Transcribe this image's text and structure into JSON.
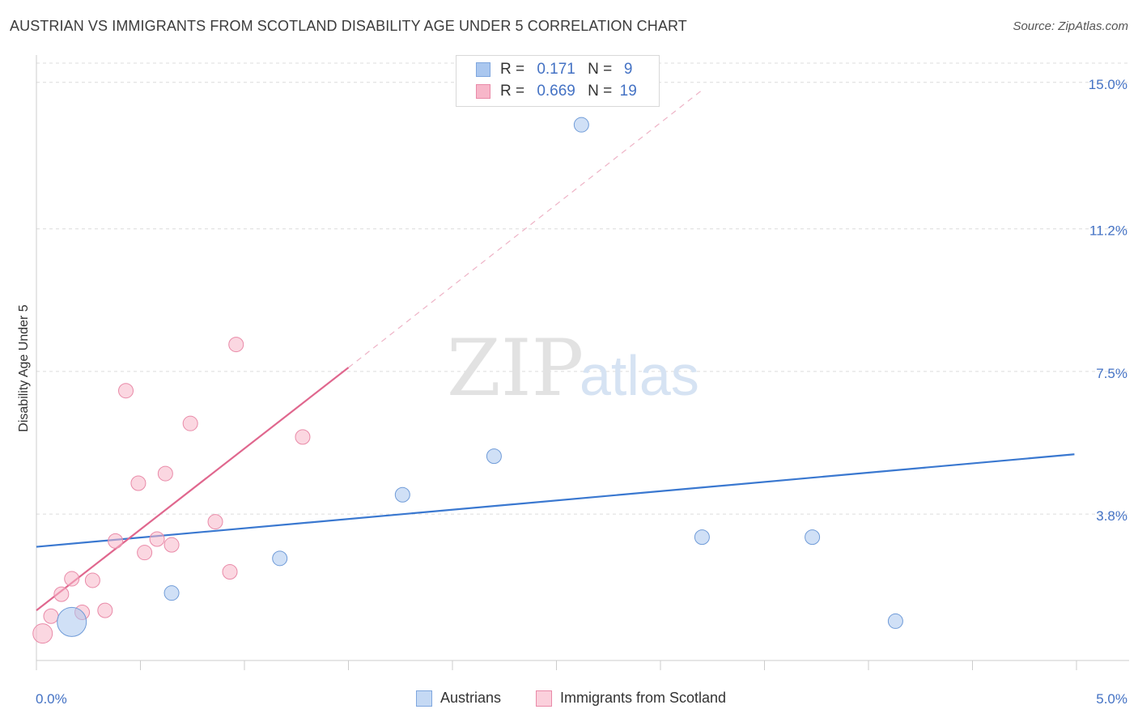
{
  "title": "AUSTRIAN VS IMMIGRANTS FROM SCOTLAND DISABILITY AGE UNDER 5 CORRELATION CHART",
  "source": "Source: ZipAtlas.com",
  "watermark": {
    "zip": "ZIP",
    "atlas": "atlas"
  },
  "legend": {
    "rows": [
      {
        "r_label": "R =",
        "r_value": "0.171",
        "n_label": "N =",
        "n_value": "9",
        "color": "#aac7ef",
        "border": "#7ea6de"
      },
      {
        "r_label": "R =",
        "r_value": "0.669",
        "n_label": "N =",
        "n_value": "19",
        "color": "#f7b6c9",
        "border": "#e98aa8"
      }
    ]
  },
  "bottom_legend": [
    {
      "label": "Austrians",
      "color": "#c5d9f4",
      "border": "#7ea6de"
    },
    {
      "label": "Immigrants from Scotland",
      "color": "#fbd0dc",
      "border": "#e98aa8"
    }
  ],
  "chart_data": {
    "type": "scatter",
    "title": "AUSTRIAN VS IMMIGRANTS FROM SCOTLAND DISABILITY AGE UNDER 5 CORRELATION CHART",
    "xlabel": "",
    "ylabel": "Disability Age Under 5",
    "xlim": [
      0,
      5
    ],
    "ylim": [
      0,
      15.5
    ],
    "x_tick_labels": [
      "0.0%",
      "5.0%"
    ],
    "y_ticks": [
      3.8,
      7.5,
      11.2,
      15.0
    ],
    "y_tick_labels": [
      "3.8%",
      "7.5%",
      "11.2%",
      "15.0%"
    ],
    "grid": true,
    "series": [
      {
        "name": "Austrians",
        "color": "#aac7ef",
        "stroke": "#6f9bd8",
        "line_color": "#3a78d0",
        "points": [
          {
            "x": 0.17,
            "y": 1.0,
            "size": 18
          },
          {
            "x": 0.65,
            "y": 1.75,
            "size": 9
          },
          {
            "x": 1.17,
            "y": 2.65,
            "size": 9
          },
          {
            "x": 1.76,
            "y": 4.3,
            "size": 9
          },
          {
            "x": 2.2,
            "y": 5.3,
            "size": 9
          },
          {
            "x": 2.62,
            "y": 13.9,
            "size": 9
          },
          {
            "x": 3.2,
            "y": 3.2,
            "size": 9
          },
          {
            "x": 3.73,
            "y": 3.2,
            "size": 9
          },
          {
            "x": 4.13,
            "y": 1.02,
            "size": 9
          }
        ],
        "trend": {
          "x": [
            0.0,
            4.99
          ],
          "y": [
            2.95,
            5.35
          ]
        }
      },
      {
        "name": "Immigrants from Scotland",
        "color": "#f7b6c9",
        "stroke": "#e98aa8",
        "line_color": "#e0678e",
        "points": [
          {
            "x": 0.03,
            "y": 0.7,
            "size": 12
          },
          {
            "x": 0.07,
            "y": 1.15,
            "size": 9
          },
          {
            "x": 0.12,
            "y": 1.72,
            "size": 9
          },
          {
            "x": 0.17,
            "y": 2.12,
            "size": 9
          },
          {
            "x": 0.22,
            "y": 1.25,
            "size": 9
          },
          {
            "x": 0.27,
            "y": 2.08,
            "size": 9
          },
          {
            "x": 0.33,
            "y": 1.3,
            "size": 9
          },
          {
            "x": 0.38,
            "y": 3.1,
            "size": 9
          },
          {
            "x": 0.43,
            "y": 7.0,
            "size": 9
          },
          {
            "x": 0.49,
            "y": 4.6,
            "size": 9
          },
          {
            "x": 0.52,
            "y": 2.8,
            "size": 9
          },
          {
            "x": 0.58,
            "y": 3.15,
            "size": 9
          },
          {
            "x": 0.62,
            "y": 4.85,
            "size": 9
          },
          {
            "x": 0.65,
            "y": 3.0,
            "size": 9
          },
          {
            "x": 0.74,
            "y": 6.15,
            "size": 9
          },
          {
            "x": 0.86,
            "y": 3.6,
            "size": 9
          },
          {
            "x": 0.93,
            "y": 2.3,
            "size": 9
          },
          {
            "x": 0.96,
            "y": 8.2,
            "size": 9
          },
          {
            "x": 1.28,
            "y": 5.8,
            "size": 9
          }
        ],
        "trend": {
          "x": [
            0.0,
            1.5
          ],
          "y": [
            1.3,
            7.6
          ]
        },
        "trend_extension": {
          "x": [
            1.5,
            3.2
          ],
          "y": [
            7.6,
            14.8
          ]
        }
      }
    ]
  }
}
